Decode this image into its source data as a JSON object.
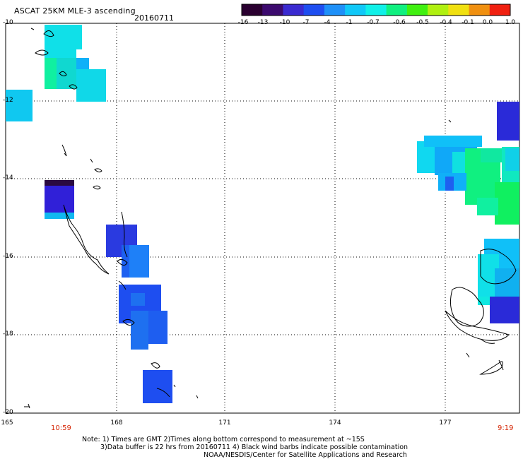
{
  "header": {
    "title": "ASCAT 25KM MLE-3 ascending",
    "date": "20160711"
  },
  "colorbar": {
    "labels": [
      "-16",
      "-13",
      "-10",
      "-7",
      "-4",
      "-1",
      "-0.7",
      "-0.6",
      "-0.5",
      "-0.4",
      "-0.1",
      "0.0",
      "1.0"
    ],
    "colors": [
      "#2a0030",
      "#3c0a6e",
      "#3a2ad0",
      "#1e4ef0",
      "#1e90f8",
      "#10c8f8",
      "#10f0e8",
      "#10f080",
      "#40f010",
      "#b0f010",
      "#f0e010",
      "#f09010",
      "#f02010"
    ]
  },
  "lat_labels": [
    "-10",
    "-12",
    "-14",
    "-16",
    "-18",
    "-20"
  ],
  "lon_labels": [
    "165",
    "168",
    "171",
    "174",
    "177"
  ],
  "times": {
    "left": "10:59",
    "right": "9:19"
  },
  "notes": {
    "line1": "Note: 1) Times are GMT 2)Times along bottom correspond to measurement at ~15S",
    "line2": "3)Data buffer is 22 hrs from 20160711 4) Black wind barbs indicate possible contamination",
    "line3": "NOAA/NESDIS/Center for Satellite Applications and Research"
  }
}
